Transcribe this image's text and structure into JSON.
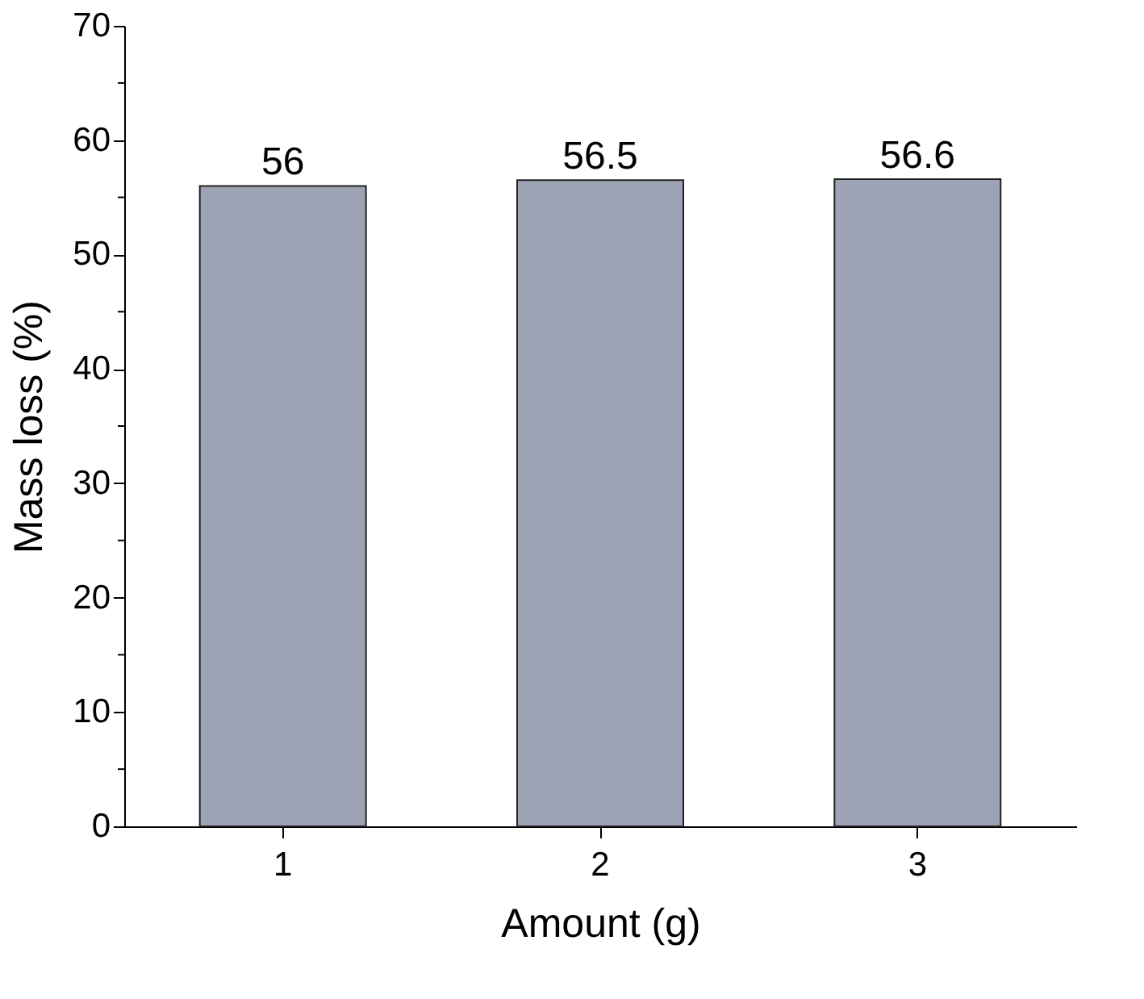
{
  "chart_data": {
    "type": "bar",
    "xlabel": "Amount (g)",
    "ylabel": "Mass loss (%)",
    "categories": [
      "1",
      "2",
      "3"
    ],
    "values": [
      56,
      56.5,
      56.6
    ],
    "color": "#9da3b5",
    "ylim": [
      0,
      70
    ],
    "yticks": [
      0,
      {
        "value": 5,
        "label": null
      },
      10,
      {
        "value": 15,
        "label": null
      },
      20,
      {
        "value": 25,
        "label": null
      },
      30,
      {
        "value": 35,
        "label": null
      },
      40,
      {
        "value": 45,
        "label": null
      },
      50,
      {
        "value": 55,
        "label": null
      },
      60,
      {
        "value": 65,
        "label": null
      },
      70
    ],
    "grid": false,
    "data_labels": true
  }
}
